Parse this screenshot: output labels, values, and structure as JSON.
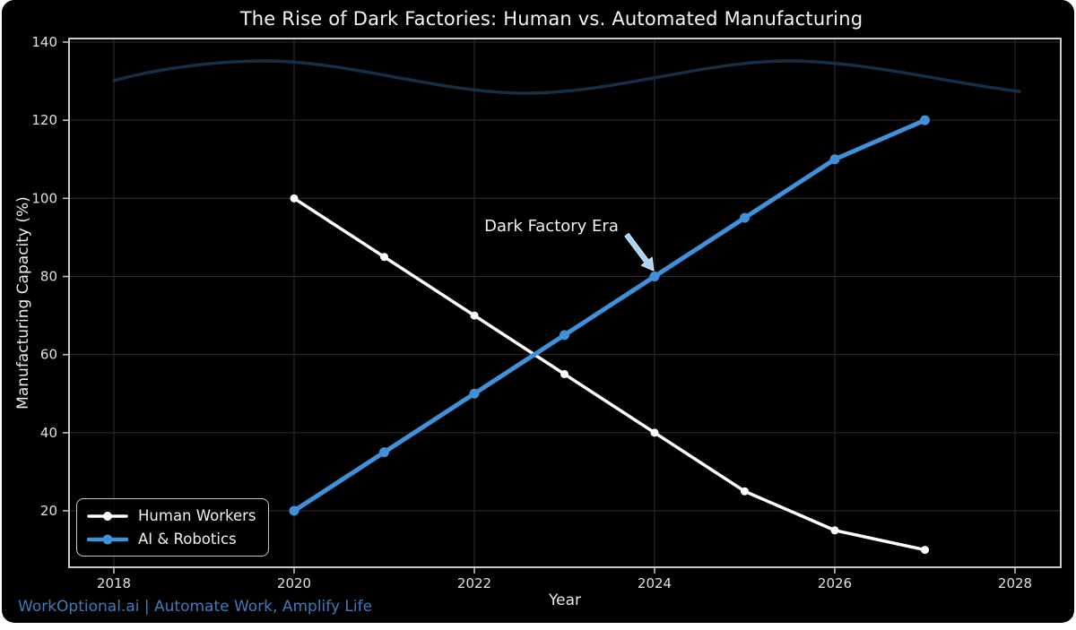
{
  "page": {
    "footer": "WorkOptional.ai | Automate Work, Amplify Life",
    "footer_color": "#3d7cba",
    "background": "#ffffff",
    "card_background": "#000000"
  },
  "chart_data": {
    "type": "line",
    "title": "The Rise of Dark Factories: Human vs. Automated Manufacturing",
    "xlabel": "Year",
    "ylabel": "Manufacturing Capacity (%)",
    "x": [
      2020,
      2021,
      2022,
      2023,
      2024,
      2025,
      2026,
      2027
    ],
    "series": [
      {
        "name": "Human Workers",
        "color": "#ffffff",
        "values": [
          100,
          85,
          70,
          55,
          40,
          25,
          15,
          10
        ]
      },
      {
        "name": "AI & Robotics",
        "color": "#4191da",
        "values": [
          20,
          35,
          50,
          65,
          80,
          95,
          110,
          120
        ]
      }
    ],
    "x_ticks": [
      2018,
      2020,
      2022,
      2024,
      2026,
      2028
    ],
    "y_ticks": [
      20,
      40,
      60,
      80,
      100,
      120,
      140
    ],
    "xlim": [
      2017.5,
      2028.5
    ],
    "ylim": [
      5.5,
      141
    ],
    "grid": true,
    "grid_color": "#2e2e2e",
    "axis_color": "#c9c9c9",
    "tick_label_color": "#e0e0e0",
    "legend_position": "lower left",
    "annotation": {
      "text": "Dark Factory Era",
      "target_x": 2024,
      "target_y": 80,
      "arrow_color": "#a9d3f2"
    },
    "decorative_wave_color": "#16324b"
  }
}
